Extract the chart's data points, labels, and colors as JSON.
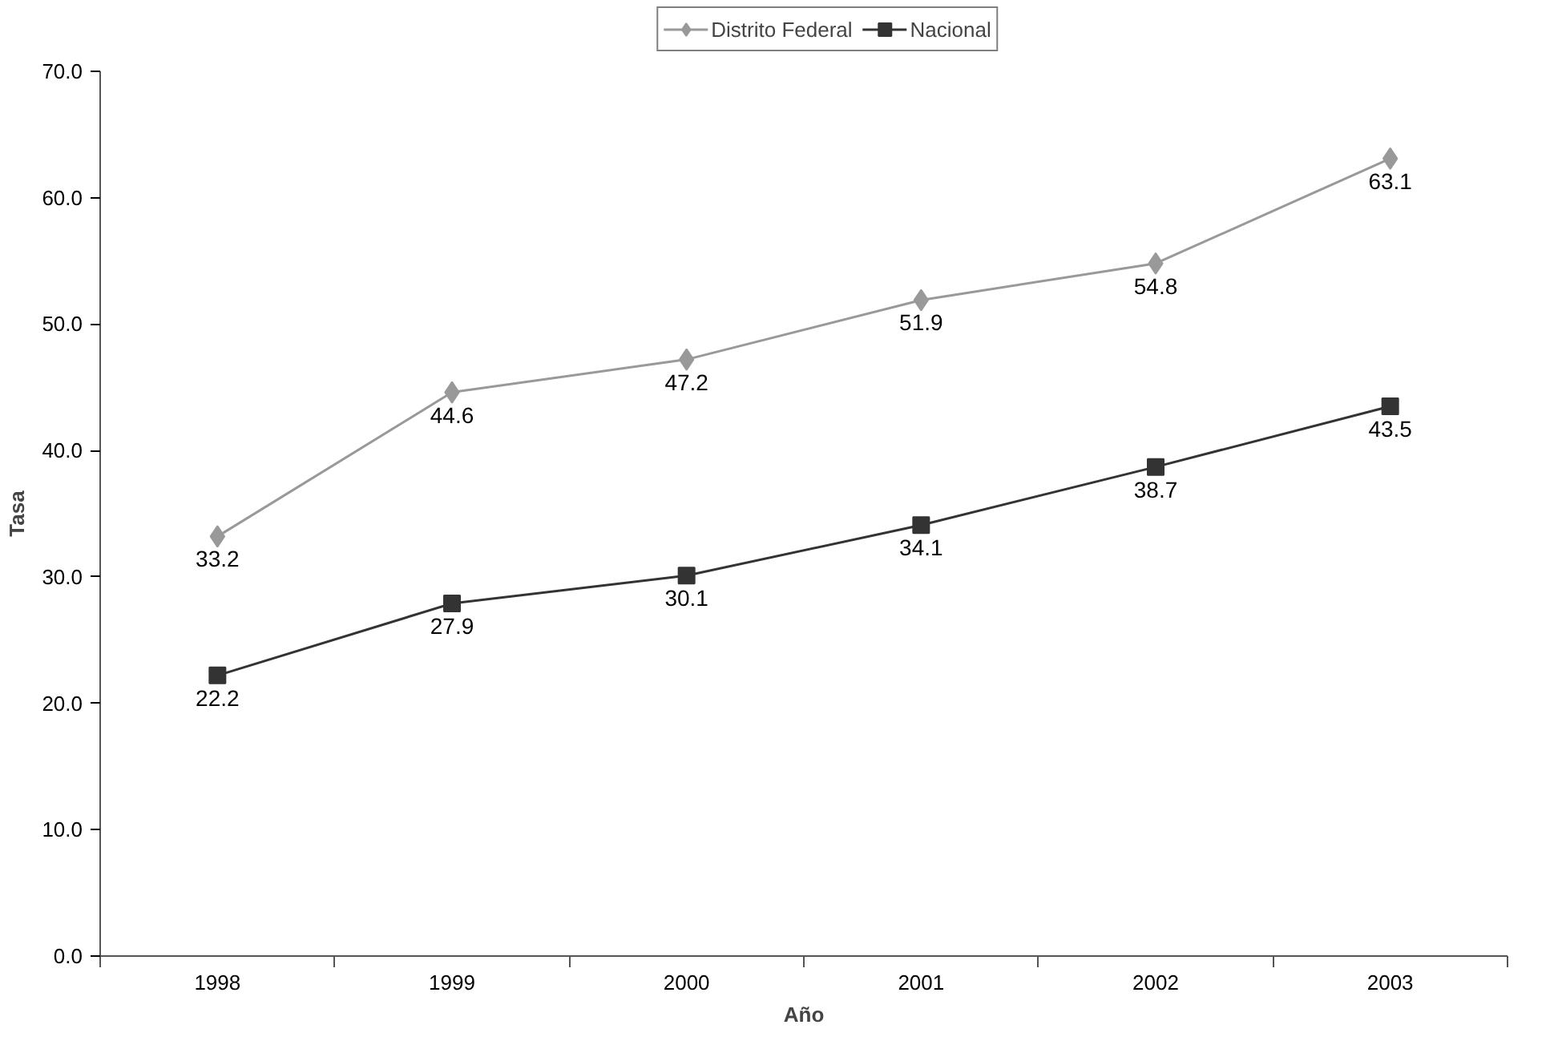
{
  "chart_data": {
    "type": "line",
    "xlabel": "Año",
    "ylabel": "Tasa",
    "categories": [
      "1998",
      "1999",
      "2000",
      "2001",
      "2002",
      "2003"
    ],
    "series": [
      {
        "name": "Distrito Federal",
        "color": "#999999",
        "marker": "diamond",
        "values": [
          33.2,
          44.6,
          47.2,
          51.9,
          54.8,
          63.1
        ]
      },
      {
        "name": "Nacional",
        "color": "#333333",
        "marker": "square",
        "values": [
          22.2,
          27.9,
          30.1,
          34.1,
          38.7,
          43.5
        ]
      }
    ],
    "ylim": [
      0,
      70
    ],
    "yticks": [
      {
        "value": 0,
        "label": "0.0"
      },
      {
        "value": 10,
        "label": "10.0"
      },
      {
        "value": 20,
        "label": "20.0"
      },
      {
        "value": 30,
        "label": "30.0"
      },
      {
        "value": 40,
        "label": "40.0"
      },
      {
        "value": 50,
        "label": "50.0"
      },
      {
        "value": 60,
        "label": "60.0"
      },
      {
        "value": 70,
        "label": "70.0"
      }
    ],
    "grid": false,
    "legend": "top",
    "data_labels": true,
    "line_style": "solid"
  }
}
